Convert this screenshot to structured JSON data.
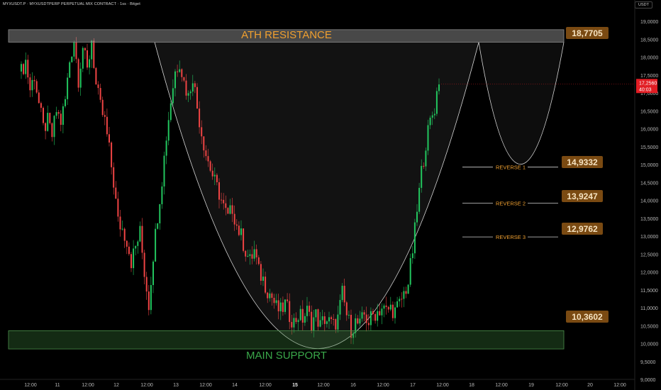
{
  "header": {
    "symbol_line": "MYXUSDT.P · MYXUSDTPERP PERPETUAL MIX CONTRACT · 1ss · Bitget",
    "currency": "USDT"
  },
  "colors": {
    "background": "#000000",
    "up": "#22c55e",
    "down": "#ef4444",
    "resistance_title": "#f0a030",
    "support_title": "#3aa84a",
    "badge_bg": "#7a4a12",
    "badge_text": "#f5e2c0",
    "price_tag": "#e11d24"
  },
  "chart_data": {
    "type": "candlestick",
    "y_axis": {
      "ylim": [
        9.0,
        19.5
      ],
      "ticks": [
        "9,0000",
        "9,5000",
        "10,0000",
        "10,5000",
        "11,0000",
        "11,5000",
        "12,0000",
        "12,5000",
        "13,0000",
        "13,5000",
        "14,0000",
        "14,5000",
        "15,0000",
        "15,5000",
        "16,0000",
        "16,5000",
        "17,0000",
        "17,5000",
        "18,0000",
        "18,5000",
        "19,0000"
      ]
    },
    "x_axis": {
      "ticks": [
        "12:00",
        "11",
        "12:00",
        "12",
        "12:00",
        "13",
        "12:00",
        "14",
        "12:00",
        "15",
        "12:00",
        "16",
        "12:00",
        "17",
        "12:00",
        "18",
        "12:00",
        "19",
        "12:00",
        "20",
        "12:00"
      ]
    },
    "current_price": {
      "price": "17,2560",
      "countdown": "40:03",
      "value": 17.256
    },
    "zones": [
      {
        "name": "resistance",
        "title": "ATH RESISTANCE",
        "label": "18,7705",
        "top": 18.77,
        "bottom": 18.42
      },
      {
        "name": "support",
        "title": "MAIN SUPPORT",
        "label": "10,3602",
        "top": 10.36,
        "bottom": 9.85
      }
    ],
    "reverse_levels": [
      {
        "name": "REVERSE 1",
        "label": "14,9332",
        "value": 14.93
      },
      {
        "name": "REVERSE 2",
        "label": "13,9247",
        "value": 13.92
      },
      {
        "name": "REVERSE 3",
        "label": "12,9762",
        "value": 12.98
      }
    ],
    "pattern": "cup and handle",
    "candles_path": [
      [
        0,
        17.6
      ],
      [
        2,
        17.9
      ],
      [
        4,
        17.1
      ],
      [
        6,
        17.5
      ],
      [
        8,
        16.7
      ],
      [
        10,
        16.0
      ],
      [
        12,
        16.2
      ],
      [
        14,
        15.8
      ],
      [
        16,
        16.5
      ],
      [
        18,
        16.2
      ],
      [
        20,
        16.8
      ],
      [
        22,
        17.9
      ],
      [
        24,
        18.5
      ],
      [
        26,
        17.4
      ],
      [
        28,
        18.3
      ],
      [
        30,
        17.6
      ],
      [
        32,
        18.5
      ],
      [
        34,
        17.2
      ],
      [
        36,
        16.6
      ],
      [
        38,
        16.2
      ],
      [
        40,
        15.4
      ],
      [
        42,
        14.5
      ],
      [
        44,
        13.4
      ],
      [
        46,
        13.2
      ],
      [
        48,
        12.9
      ],
      [
        50,
        12.3
      ],
      [
        52,
        12.7
      ],
      [
        54,
        13.1
      ],
      [
        56,
        12.0
      ],
      [
        58,
        11.1
      ],
      [
        60,
        12.5
      ],
      [
        62,
        13.6
      ],
      [
        64,
        14.6
      ],
      [
        66,
        15.8
      ],
      [
        68,
        16.8
      ],
      [
        70,
        17.6
      ],
      [
        72,
        17.9
      ],
      [
        74,
        17.3
      ],
      [
        76,
        16.9
      ],
      [
        78,
        17.5
      ],
      [
        80,
        16.6
      ],
      [
        82,
        15.9
      ],
      [
        84,
        15.3
      ],
      [
        86,
        14.9
      ],
      [
        88,
        14.5
      ],
      [
        90,
        14.2
      ],
      [
        92,
        13.8
      ],
      [
        94,
        13.5
      ],
      [
        96,
        13.8
      ],
      [
        98,
        13.3
      ],
      [
        100,
        13.0
      ],
      [
        102,
        12.6
      ],
      [
        104,
        12.3
      ],
      [
        106,
        12.6
      ],
      [
        108,
        12.0
      ],
      [
        110,
        11.8
      ],
      [
        112,
        11.5
      ],
      [
        114,
        11.3
      ],
      [
        116,
        11.0
      ],
      [
        118,
        10.9
      ],
      [
        120,
        11.1
      ],
      [
        122,
        10.8
      ],
      [
        124,
        10.6
      ],
      [
        126,
        10.8
      ],
      [
        128,
        10.7
      ],
      [
        130,
        10.9
      ],
      [
        132,
        10.6
      ],
      [
        134,
        10.8
      ],
      [
        136,
        10.5
      ],
      [
        138,
        10.7
      ],
      [
        140,
        10.6
      ],
      [
        142,
        10.5
      ],
      [
        144,
        10.7
      ],
      [
        146,
        11.4
      ],
      [
        148,
        10.8
      ],
      [
        150,
        10.4
      ],
      [
        152,
        10.6
      ],
      [
        154,
        10.5
      ],
      [
        156,
        10.8
      ],
      [
        158,
        10.6
      ],
      [
        160,
        10.8
      ],
      [
        162,
        10.9
      ],
      [
        164,
        11.0
      ],
      [
        166,
        10.9
      ],
      [
        168,
        11.0
      ],
      [
        170,
        10.9
      ],
      [
        172,
        11.1
      ],
      [
        174,
        11.4
      ],
      [
        176,
        11.7
      ],
      [
        178,
        12.6
      ],
      [
        180,
        13.7
      ],
      [
        182,
        14.8
      ],
      [
        184,
        15.6
      ],
      [
        186,
        16.2
      ],
      [
        188,
        16.6
      ],
      [
        190,
        17.4
      ],
      [
        191,
        17.26
      ]
    ]
  }
}
